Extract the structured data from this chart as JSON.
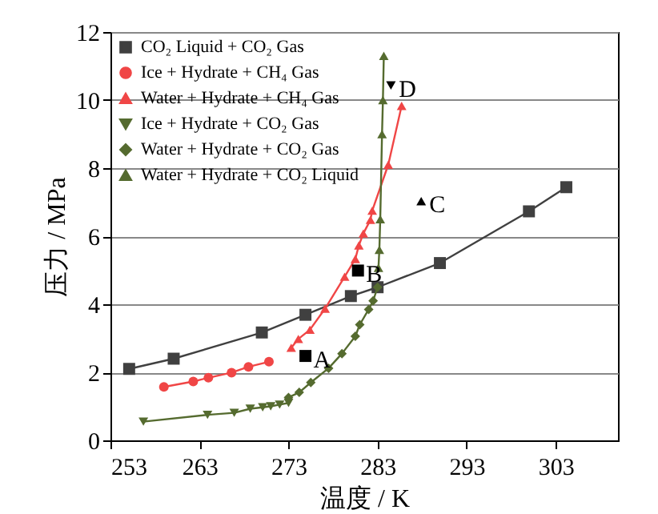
{
  "chart_data": {
    "type": "line",
    "xlabel": "温度 / K",
    "ylabel": "压力 / MPa",
    "xlim": [
      253,
      310
    ],
    "ylim": [
      0,
      12
    ],
    "xticks": [
      253,
      263,
      273,
      283,
      293,
      303
    ],
    "yticks": [
      0,
      2,
      4,
      6,
      8,
      10,
      12
    ],
    "grid": "y",
    "legend": "top left",
    "series": [
      {
        "name": "CO₂ Liquid + CO₂ Gas",
        "color": "#404040",
        "marker": "square",
        "x": [
          255.1,
          260.1,
          270,
          274.9,
          280,
          283,
          290,
          300,
          304.2
        ],
        "values": [
          2.1,
          2.4,
          3.17,
          3.69,
          4.24,
          4.5,
          5.21,
          6.73,
          7.44
        ]
      },
      {
        "name": "Ice + Hydrate + CH₄ Gas",
        "color": "#f04646",
        "marker": "circle",
        "x": [
          259,
          262.3,
          264,
          266.6,
          268.5,
          270.8
        ],
        "values": [
          1.57,
          1.73,
          1.84,
          1.99,
          2.16,
          2.31
        ]
      },
      {
        "name": "Water + Hydrate + CH₄ Gas",
        "color": "#f04646",
        "marker": "triangle",
        "x": [
          273.3,
          274.1,
          275.4,
          277.1,
          279.3,
          280.5,
          280.9,
          281.4,
          282.2,
          282.4,
          284.2,
          285.7
        ],
        "values": [
          2.72,
          2.98,
          3.25,
          3.87,
          4.81,
          5.33,
          5.73,
          6.08,
          6.48,
          6.75,
          8.1,
          9.83
        ]
      },
      {
        "name": "Ice + Hydrate + CO₂ Gas",
        "color": "#556b2f",
        "marker": "triangle-down",
        "x": [
          256.7,
          263.9,
          266.9,
          268.7,
          270.1,
          271,
          272,
          273
        ],
        "values": [
          0.55,
          0.75,
          0.81,
          0.93,
          0.97,
          1.0,
          1.05,
          1.1
        ]
      },
      {
        "name": "Water + Hydrate + CO₂ Gas",
        "color": "#556b2f",
        "marker": "diamond",
        "x": [
          273,
          274.2,
          275.5,
          277.5,
          279,
          280.5,
          281,
          282,
          282.5,
          283
        ],
        "values": [
          1.26,
          1.41,
          1.7,
          2.12,
          2.55,
          3.06,
          3.4,
          3.85,
          4.1,
          4.5
        ]
      },
      {
        "name": "Water + Hydrate + CO₂ Liquid",
        "color": "#556b2f",
        "marker": "triangle",
        "x": [
          283.1,
          283.2,
          283.3,
          283.5,
          283.6,
          283.7
        ],
        "values": [
          5.07,
          5.6,
          6.5,
          9.0,
          10.0,
          11.3
        ]
      },
      {
        "type": "scatter",
        "color": "#000000",
        "marker": "square",
        "x": [
          274.9
        ],
        "values": [
          2.48
        ]
      },
      {
        "type": "scatter",
        "color": "#000000",
        "marker": "square",
        "x": [
          280.8
        ],
        "values": [
          4.99
        ]
      },
      {
        "type": "scatter",
        "color": "#000000",
        "marker": "triangle",
        "x": [
          287.9
        ],
        "values": [
          7.03
        ]
      },
      {
        "type": "scatter",
        "color": "#000000",
        "marker": "triangle-down",
        "x": [
          284.5
        ],
        "values": [
          10.43
        ]
      }
    ],
    "annotations": [
      {
        "text": "A",
        "x": 274.9,
        "y": 2.48
      },
      {
        "text": "B",
        "x": 280.8,
        "y": 4.99
      },
      {
        "text": "C",
        "x": 287.9,
        "y": 7.03
      },
      {
        "text": "D",
        "x": 284.5,
        "y": 10.43
      }
    ]
  }
}
